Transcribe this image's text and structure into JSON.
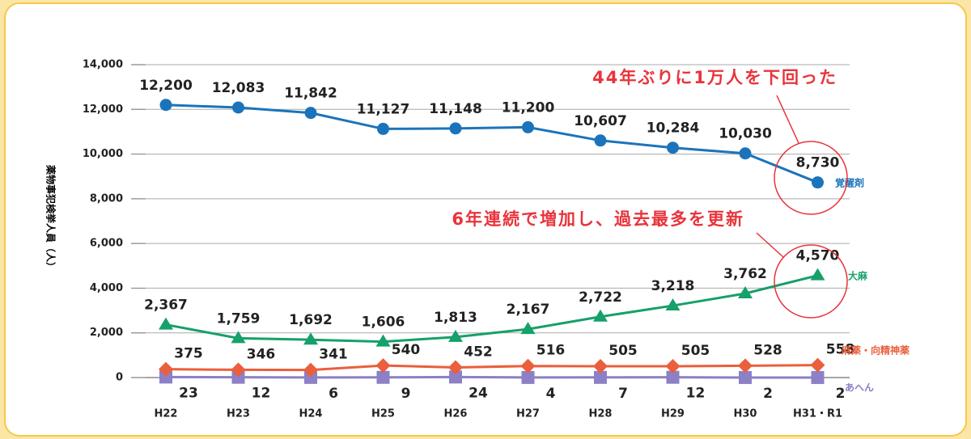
{
  "chart_data": {
    "type": "line",
    "y_label": "薬物事犯検挙人員（人）",
    "annotations": [
      "44年ぶりに1万人を下回った",
      "6年連続で増加し、過去最多を更新"
    ],
    "categories": [
      "H22",
      "H23",
      "H24",
      "H25",
      "H26",
      "H27",
      "H28",
      "H29",
      "H30",
      "H31・R1"
    ],
    "ylim": [
      0,
      14000
    ],
    "yticks": [
      0,
      {
        "value": 2000,
        "label": "2,000"
      },
      {
        "value": 4000,
        "label": "4,000"
      },
      {
        "value": 6000,
        "label": "6,000"
      },
      {
        "value": 8000,
        "label": "8,000"
      },
      {
        "value": 10000,
        "label": "10,000"
      },
      {
        "value": 12000,
        "label": "12,000"
      },
      {
        "value": 14000,
        "label": "14,000"
      }
    ],
    "grid": true,
    "series": [
      {
        "name": "覚醒剤",
        "color": "#1b74bb",
        "marker": "circle",
        "values": [
          12200,
          12083,
          11842,
          11127,
          11148,
          11200,
          10607,
          10284,
          10030,
          8730
        ],
        "value_labels": [
          "12,200",
          "12,083",
          "11,842",
          "11,127",
          "11,148",
          "11,200",
          "10,607",
          "10,284",
          "10,030",
          "8,730"
        ]
      },
      {
        "name": "大麻",
        "color": "#16a06a",
        "marker": "triangle",
        "values": [
          2367,
          1759,
          1692,
          1606,
          1813,
          2167,
          2722,
          3218,
          3762,
          4570
        ],
        "value_labels": [
          "2,367",
          "1,759",
          "1,692",
          "1,606",
          "1,813",
          "2,167",
          "2,722",
          "3,218",
          "3,762",
          "4,570"
        ]
      },
      {
        "name": "麻薬・向精神薬",
        "color": "#ea5f3c",
        "marker": "diamond",
        "values": [
          375,
          346,
          341,
          540,
          452,
          516,
          505,
          505,
          528,
          558
        ]
      },
      {
        "name": "あへん",
        "color": "#8c80c6",
        "marker": "square",
        "values": [
          23,
          12,
          6,
          9,
          24,
          4,
          7,
          12,
          2,
          2
        ]
      }
    ]
  }
}
